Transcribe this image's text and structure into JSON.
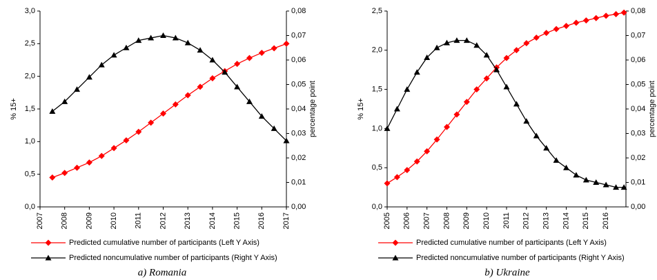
{
  "chart_data": [
    {
      "type": "line",
      "title": "a) Romania",
      "ylabel": "% 15+",
      "y2label": "percentage point",
      "x": [
        2007.5,
        2008,
        2008.5,
        2009,
        2009.5,
        2010,
        2010.5,
        2011,
        2011.5,
        2012,
        2012.5,
        2013,
        2013.5,
        2014,
        2014.5,
        2015,
        2015.5,
        2016,
        2016.5,
        2017
      ],
      "series": [
        {
          "name": "Predicted cumulative number  of participants (Left Y Axis)",
          "color": "#ff0000",
          "marker": "diamond",
          "values": [
            0.45,
            0.52,
            0.6,
            0.68,
            0.78,
            0.9,
            1.02,
            1.15,
            1.29,
            1.43,
            1.57,
            1.71,
            1.84,
            1.97,
            2.08,
            2.19,
            2.28,
            2.36,
            2.43,
            2.5
          ]
        },
        {
          "name": "Predicted noncumulative number of participants (Right Y Axis)",
          "color": "#000000",
          "marker": "triangle",
          "axis": "y2",
          "values": [
            0.039,
            0.043,
            0.048,
            0.053,
            0.058,
            0.062,
            0.065,
            0.068,
            0.069,
            0.07,
            0.069,
            0.067,
            0.064,
            0.06,
            0.055,
            0.049,
            0.043,
            0.037,
            0.032,
            0.027
          ]
        }
      ],
      "xlim": [
        2007,
        2017
      ],
      "xticks": [
        2007,
        2008,
        2009,
        2010,
        2011,
        2012,
        2013,
        2014,
        2015,
        2016,
        2017
      ],
      "ylim": [
        0,
        3
      ],
      "yticks": [
        {
          "value": 0,
          "label": "0,0"
        },
        {
          "value": 0.5,
          "label": "0,5"
        },
        {
          "value": 1,
          "label": "1,0"
        },
        {
          "value": 1.5,
          "label": "1,5"
        },
        {
          "value": 2,
          "label": "2,0"
        },
        {
          "value": 2.5,
          "label": "2,5"
        },
        {
          "value": 3,
          "label": "3,0"
        }
      ],
      "y2lim": [
        0,
        0.08
      ],
      "y2ticks": [
        {
          "value": 0,
          "label": "0,00"
        },
        {
          "value": 0.01,
          "label": "0,01"
        },
        {
          "value": 0.02,
          "label": "0,02"
        },
        {
          "value": 0.03,
          "label": "0,03"
        },
        {
          "value": 0.04,
          "label": "0,04"
        },
        {
          "value": 0.05,
          "label": "0,05"
        },
        {
          "value": 0.06,
          "label": "0,06"
        },
        {
          "value": 0.07,
          "label": "0,07"
        },
        {
          "value": 0.08,
          "label": "0,08"
        }
      ]
    },
    {
      "type": "line",
      "title": "b) Ukraine",
      "ylabel": "% 15+",
      "y2label": "percentage point",
      "x": [
        2005,
        2005.5,
        2006,
        2006.5,
        2007,
        2007.5,
        2008,
        2008.5,
        2009,
        2009.5,
        2010,
        2010.5,
        2011,
        2011.5,
        2012,
        2012.5,
        2013,
        2013.5,
        2014,
        2014.5,
        2015,
        2015.5,
        2016,
        2016.5,
        2016.9
      ],
      "series": [
        {
          "name": "Predicted cumulative number  of participants (Left Y Axis)",
          "color": "#ff0000",
          "marker": "diamond",
          "values": [
            0.3,
            0.38,
            0.47,
            0.58,
            0.71,
            0.86,
            1.02,
            1.18,
            1.34,
            1.5,
            1.64,
            1.78,
            1.9,
            2.0,
            2.09,
            2.16,
            2.22,
            2.27,
            2.31,
            2.35,
            2.38,
            2.41,
            2.44,
            2.46,
            2.48
          ]
        },
        {
          "name": "Predicted noncumulative number of participants (Right Y Axis)",
          "color": "#000000",
          "marker": "triangle",
          "axis": "y2",
          "values": [
            0.032,
            0.04,
            0.048,
            0.055,
            0.061,
            0.065,
            0.067,
            0.068,
            0.068,
            0.066,
            0.062,
            0.056,
            0.049,
            0.042,
            0.035,
            0.029,
            0.024,
            0.019,
            0.016,
            0.013,
            0.011,
            0.01,
            0.009,
            0.008,
            0.008
          ]
        }
      ],
      "xlim": [
        2005,
        2017
      ],
      "xticks": [
        2005,
        2006,
        2007,
        2008,
        2009,
        2010,
        2011,
        2012,
        2013,
        2014,
        2015,
        2016
      ],
      "ylim": [
        0,
        2.5
      ],
      "yticks": [
        {
          "value": 0,
          "label": "0,0"
        },
        {
          "value": 0.5,
          "label": "0,5"
        },
        {
          "value": 1,
          "label": "1,0"
        },
        {
          "value": 1.5,
          "label": "1,5"
        },
        {
          "value": 2,
          "label": "2,0"
        },
        {
          "value": 2.5,
          "label": "2,5"
        }
      ],
      "y2lim": [
        0,
        0.08
      ],
      "y2ticks": [
        {
          "value": 0,
          "label": "0,00"
        },
        {
          "value": 0.01,
          "label": "0,01"
        },
        {
          "value": 0.02,
          "label": "0,02"
        },
        {
          "value": 0.03,
          "label": "0,03"
        },
        {
          "value": 0.04,
          "label": "0,04"
        },
        {
          "value": 0.05,
          "label": "0,05"
        },
        {
          "value": 0.06,
          "label": "0,06"
        },
        {
          "value": 0.07,
          "label": "0,07"
        },
        {
          "value": 0.08,
          "label": "0,08"
        }
      ]
    }
  ]
}
